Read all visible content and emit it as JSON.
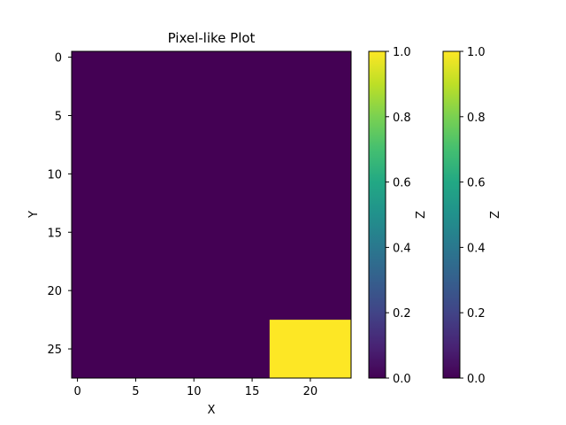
{
  "chart_data": {
    "type": "heatmap",
    "title": "Pixel-like Plot",
    "xlabel": "X",
    "ylabel": "Y",
    "grid": {
      "cols": 24,
      "rows": 28
    },
    "xlim": [
      -0.5,
      23.5
    ],
    "ylim": [
      27.5,
      -0.5
    ],
    "x_ticks": [
      0,
      5,
      10,
      15,
      20
    ],
    "y_ticks": [
      0,
      5,
      10,
      15,
      20,
      25
    ],
    "background_value": 0.0,
    "regions": [
      {
        "value": 1.0,
        "x_range": [
          17,
          23
        ],
        "y_range": [
          23,
          27
        ]
      }
    ],
    "colormap": "viridis",
    "colorbars": [
      {
        "label": "Z",
        "range": [
          0.0,
          1.0
        ],
        "ticks": [
          "0.0",
          "0.2",
          "0.4",
          "0.6",
          "0.8",
          "1.0"
        ]
      },
      {
        "label": "Z",
        "range": [
          0.0,
          1.0
        ],
        "ticks": [
          "0.0",
          "0.2",
          "0.4",
          "0.6",
          "0.8",
          "1.0"
        ]
      }
    ],
    "colors": {
      "low": "#440154",
      "high": "#fde725"
    }
  }
}
